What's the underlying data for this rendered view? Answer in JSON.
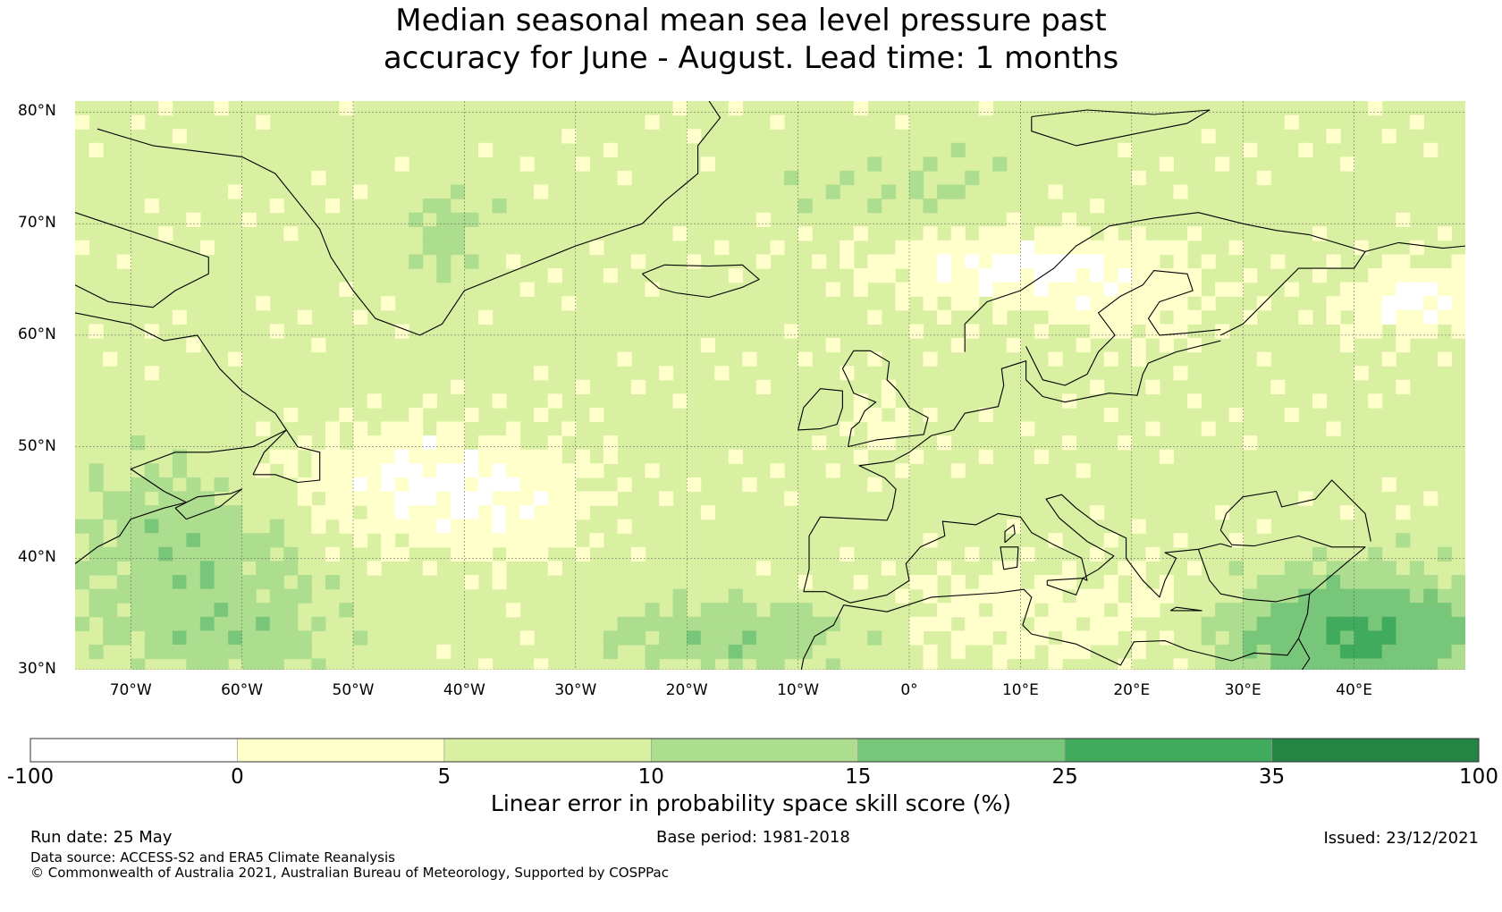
{
  "title": {
    "line1": "Median seasonal mean sea level pressure past",
    "line2": "accuracy for June - August. Lead time: 1 months"
  },
  "map": {
    "lat_labels": [
      "80°N",
      "70°N",
      "60°N",
      "50°N",
      "40°N",
      "30°N"
    ],
    "lat_values": [
      80,
      70,
      60,
      50,
      40,
      30
    ],
    "lon_labels": [
      "70°W",
      "60°W",
      "50°W",
      "40°W",
      "30°W",
      "20°W",
      "10°W",
      "0°",
      "10°E",
      "20°E",
      "30°E",
      "40°E"
    ],
    "lon_values": [
      -70,
      -60,
      -50,
      -40,
      -30,
      -20,
      -10,
      0,
      10,
      20,
      30,
      40
    ],
    "extent": {
      "lon_min": -75,
      "lon_max": 50,
      "lat_min": 30,
      "lat_max": 81
    }
  },
  "colorbar": {
    "tick_labels": [
      "-100",
      "0",
      "5",
      "10",
      "15",
      "25",
      "35",
      "100"
    ],
    "bins": [
      {
        "from": -100,
        "to": 0,
        "color": "#ffffff"
      },
      {
        "from": 0,
        "to": 5,
        "color": "#ffffcc"
      },
      {
        "from": 5,
        "to": 10,
        "color": "#d9f0a3"
      },
      {
        "from": 10,
        "to": 15,
        "color": "#addd8e"
      },
      {
        "from": 15,
        "to": 25,
        "color": "#78c679"
      },
      {
        "from": 25,
        "to": 35,
        "color": "#41ab5d"
      },
      {
        "from": 35,
        "to": 100,
        "color": "#238443"
      }
    ],
    "label": "Linear error in probability space skill score (%)"
  },
  "footer": {
    "run_date": "Run date: 25 May",
    "base_period": "Base period: 1981-2018",
    "issued": "Issued: 23/12/2021",
    "data_source": "Data source: ACCESS-S2 and ERA5 Climate Reanalysis",
    "copyright": "© Commonwealth of Australia 2021, Australian Bureau of Meteorology, Supported by COSPPac"
  }
}
